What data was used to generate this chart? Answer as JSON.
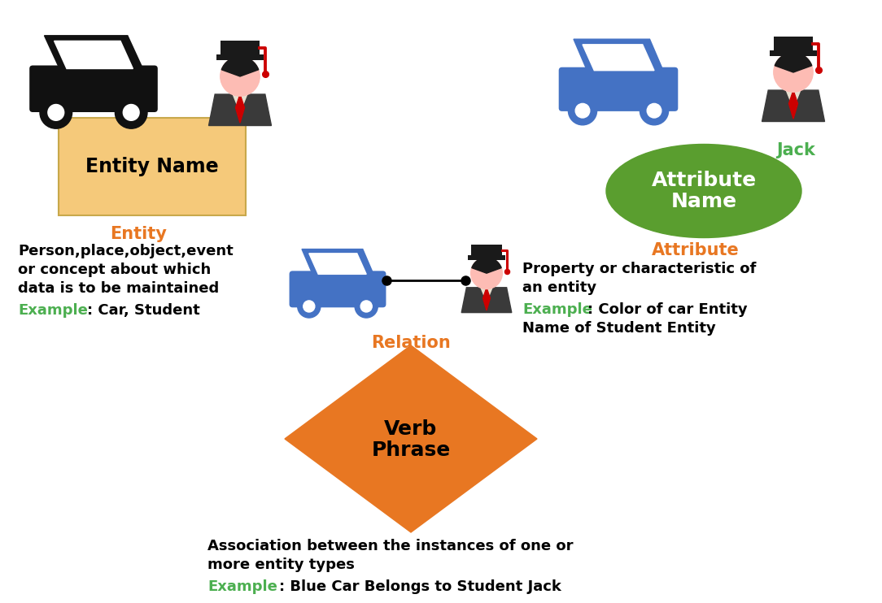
{
  "bg_color": "#ffffff",
  "orange_color": "#E87722",
  "green_color": "#4CAF50",
  "black_color": "#000000",
  "white_color": "#ffffff",
  "entity_box_color": "#F5C97A",
  "entity_box_edge_color": "#C8A84B",
  "ellipse_color": "#5A9E2F",
  "diamond_color": "#E87722",
  "entity_label": "Entity Name",
  "entity_title": "Entity",
  "attribute_title": "Attribute",
  "relation_title": "Relation",
  "jack_label": "Jack",
  "entity_desc_line1": "Person,place,object,event",
  "entity_desc_line2": "or concept about which",
  "entity_desc_line3": "data is to be maintained",
  "entity_example": "Example",
  "entity_example_text": ": Car, Student",
  "attribute_desc_line1": "Property or characteristic of",
  "attribute_desc_line2": "an entity",
  "attribute_example": "Example",
  "attribute_example_text1": ": Color of car Entity",
  "attribute_example_text2": "Name of Student Entity",
  "relation_desc_line1": "Association between the instances of one or",
  "relation_desc_line2": "more entity types",
  "relation_example": "Example",
  "relation_example_text": ": Blue Car Belongs to Student Jack",
  "verb_line1": "Verb",
  "verb_line2": "Phrase",
  "attribute_name_line1": "Attribute",
  "attribute_name_line2": "Name"
}
